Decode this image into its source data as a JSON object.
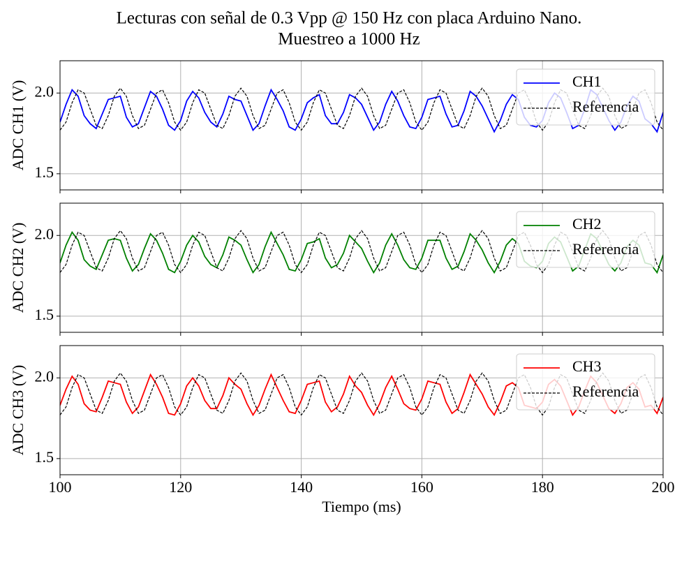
{
  "title_lines": [
    "Lecturas con señal de 0.3 Vpp @ 150 Hz con placa Arduino Nano.",
    "Muestreo a 1000 Hz"
  ],
  "chart_data": [
    {
      "type": "line",
      "ylabel": "ADC CH1 (V)",
      "xlim": [
        100,
        200
      ],
      "ylim": [
        1.4,
        2.2
      ],
      "xticks": [
        100,
        120,
        140,
        160,
        180,
        200
      ],
      "yticks": [
        1.5,
        {
          "value": 2,
          "label": "2.0"
        }
      ],
      "grid": true,
      "legend": "upper right",
      "x": [
        100,
        101,
        102,
        103,
        104,
        105,
        106,
        107,
        108,
        109,
        110,
        111,
        112,
        113,
        114,
        115,
        116,
        117,
        118,
        119,
        120,
        121,
        122,
        123,
        124,
        125,
        126,
        127,
        128,
        129,
        130,
        131,
        132,
        133,
        134,
        135,
        136,
        137,
        138,
        139,
        140,
        141,
        142,
        143,
        144,
        145,
        146,
        147,
        148,
        149,
        150,
        151,
        152,
        153,
        154,
        155,
        156,
        157,
        158,
        159,
        160,
        161,
        162,
        163,
        164,
        165,
        166,
        167,
        168,
        169,
        170,
        171,
        172,
        173,
        174,
        175,
        176,
        177,
        178,
        179,
        180,
        181,
        182,
        183,
        184,
        185,
        186,
        187,
        188,
        189,
        190,
        191,
        192,
        193,
        194,
        195,
        196,
        197,
        198,
        199,
        200
      ],
      "series": [
        {
          "name": "CH1",
          "color": "#0000ff",
          "style": "solid",
          "values": [
            1.82,
            1.93,
            2.02,
            1.98,
            1.86,
            1.81,
            1.78,
            1.87,
            1.96,
            1.97,
            1.98,
            1.85,
            1.79,
            1.81,
            1.91,
            2.01,
            1.98,
            1.9,
            1.8,
            1.77,
            1.83,
            1.95,
            2.01,
            1.97,
            1.88,
            1.82,
            1.79,
            1.87,
            1.98,
            1.96,
            1.95,
            1.86,
            1.77,
            1.81,
            1.92,
            2.02,
            1.96,
            1.89,
            1.79,
            1.77,
            1.84,
            1.94,
            1.97,
            1.99,
            1.86,
            1.81,
            1.81,
            1.88,
            1.99,
            1.97,
            1.93,
            1.85,
            1.77,
            1.82,
            1.93,
            2.01,
            1.95,
            1.86,
            1.79,
            1.78,
            1.85,
            1.96,
            1.97,
            1.98,
            1.87,
            1.79,
            1.8,
            1.89,
            2.01,
            1.98,
            1.92,
            1.84,
            1.76,
            1.83,
            1.93,
            1.99,
            1.96,
            1.85,
            1.8,
            1.79,
            1.83,
            1.94,
            2.0,
            1.97,
            1.88,
            1.78,
            1.8,
            1.9,
            2.02,
            1.99,
            1.91,
            1.83,
            1.77,
            1.82,
            1.92,
            1.98,
            1.95,
            1.84,
            1.81,
            1.76,
            1.88
          ]
        },
        {
          "name": "Referencia",
          "color": "#000000",
          "style": "dashed",
          "values": [
            1.77,
            1.82,
            1.94,
            2.02,
            2.0,
            1.9,
            1.8,
            1.78,
            1.86,
            1.98,
            2.03,
            1.98,
            1.86,
            1.78,
            1.8,
            1.9,
            2.0,
            2.02,
            1.94,
            1.82,
            1.77,
            1.82,
            1.94,
            2.02,
            2.0,
            1.9,
            1.8,
            1.78,
            1.86,
            1.98,
            2.03,
            1.98,
            1.86,
            1.78,
            1.8,
            1.9,
            2.0,
            2.02,
            1.94,
            1.82,
            1.77,
            1.82,
            1.94,
            2.02,
            2.0,
            1.9,
            1.8,
            1.78,
            1.86,
            1.98,
            2.03,
            1.98,
            1.86,
            1.78,
            1.8,
            1.9,
            2.0,
            2.02,
            1.94,
            1.82,
            1.77,
            1.82,
            1.94,
            2.02,
            2.0,
            1.9,
            1.8,
            1.78,
            1.86,
            1.98,
            2.03,
            1.98,
            1.86,
            1.78,
            1.8,
            1.9,
            2.0,
            2.02,
            1.94,
            1.82,
            1.77,
            1.82,
            1.94,
            2.02,
            2.0,
            1.9,
            1.8,
            1.78,
            1.86,
            1.98,
            2.03,
            1.98,
            1.86,
            1.78,
            1.8,
            1.9,
            2.0,
            2.02,
            1.94,
            1.82,
            1.77
          ]
        }
      ]
    },
    {
      "type": "line",
      "ylabel": "ADC CH2 (V)",
      "xlim": [
        100,
        200
      ],
      "ylim": [
        1.4,
        2.2
      ],
      "xticks": [
        100,
        120,
        140,
        160,
        180,
        200
      ],
      "yticks": [
        1.5,
        {
          "value": 2,
          "label": "2.0"
        }
      ],
      "grid": true,
      "legend": "upper right",
      "x": [
        100,
        101,
        102,
        103,
        104,
        105,
        106,
        107,
        108,
        109,
        110,
        111,
        112,
        113,
        114,
        115,
        116,
        117,
        118,
        119,
        120,
        121,
        122,
        123,
        124,
        125,
        126,
        127,
        128,
        129,
        130,
        131,
        132,
        133,
        134,
        135,
        136,
        137,
        138,
        139,
        140,
        141,
        142,
        143,
        144,
        145,
        146,
        147,
        148,
        149,
        150,
        151,
        152,
        153,
        154,
        155,
        156,
        157,
        158,
        159,
        160,
        161,
        162,
        163,
        164,
        165,
        166,
        167,
        168,
        169,
        170,
        171,
        172,
        173,
        174,
        175,
        176,
        177,
        178,
        179,
        180,
        181,
        182,
        183,
        184,
        185,
        186,
        187,
        188,
        189,
        190,
        191,
        192,
        193,
        194,
        195,
        196,
        197,
        198,
        199,
        200
      ],
      "series": [
        {
          "name": "CH2",
          "color": "#008000",
          "style": "solid",
          "values": [
            1.83,
            1.94,
            2.02,
            1.97,
            1.85,
            1.81,
            1.79,
            1.88,
            1.97,
            1.98,
            1.97,
            1.86,
            1.78,
            1.82,
            1.92,
            2.01,
            1.97,
            1.89,
            1.79,
            1.77,
            1.84,
            1.94,
            2.0,
            1.96,
            1.87,
            1.82,
            1.8,
            1.88,
            1.99,
            1.97,
            1.94,
            1.85,
            1.77,
            1.82,
            1.93,
            2.02,
            1.95,
            1.88,
            1.79,
            1.78,
            1.85,
            1.95,
            1.96,
            1.98,
            1.86,
            1.8,
            1.82,
            1.89,
            2.0,
            1.96,
            1.92,
            1.84,
            1.77,
            1.83,
            1.94,
            2.01,
            1.94,
            1.85,
            1.8,
            1.79,
            1.86,
            1.97,
            1.97,
            1.97,
            1.86,
            1.79,
            1.81,
            1.9,
            2.01,
            1.97,
            1.91,
            1.83,
            1.77,
            1.84,
            1.94,
            1.98,
            1.95,
            1.84,
            1.81,
            1.8,
            1.84,
            1.95,
            1.99,
            1.96,
            1.87,
            1.78,
            1.81,
            1.91,
            2.01,
            1.98,
            1.9,
            1.82,
            1.78,
            1.83,
            1.93,
            1.97,
            1.94,
            1.83,
            1.82,
            1.77,
            1.88
          ]
        },
        {
          "name": "Referencia",
          "color": "#000000",
          "style": "dashed",
          "values": [
            1.77,
            1.82,
            1.94,
            2.02,
            2.0,
            1.9,
            1.8,
            1.78,
            1.86,
            1.98,
            2.03,
            1.98,
            1.86,
            1.78,
            1.8,
            1.9,
            2.0,
            2.02,
            1.94,
            1.82,
            1.77,
            1.82,
            1.94,
            2.02,
            2.0,
            1.9,
            1.8,
            1.78,
            1.86,
            1.98,
            2.03,
            1.98,
            1.86,
            1.78,
            1.8,
            1.9,
            2.0,
            2.02,
            1.94,
            1.82,
            1.77,
            1.82,
            1.94,
            2.02,
            2.0,
            1.9,
            1.8,
            1.78,
            1.86,
            1.98,
            2.03,
            1.98,
            1.86,
            1.78,
            1.8,
            1.9,
            2.0,
            2.02,
            1.94,
            1.82,
            1.77,
            1.82,
            1.94,
            2.02,
            2.0,
            1.9,
            1.8,
            1.78,
            1.86,
            1.98,
            2.03,
            1.98,
            1.86,
            1.78,
            1.8,
            1.9,
            2.0,
            2.02,
            1.94,
            1.82,
            1.77,
            1.82,
            1.94,
            2.02,
            2.0,
            1.9,
            1.8,
            1.78,
            1.86,
            1.98,
            2.03,
            1.98,
            1.86,
            1.78,
            1.8,
            1.9,
            2.0,
            2.02,
            1.94,
            1.82,
            1.77
          ]
        }
      ]
    },
    {
      "type": "line",
      "ylabel": "ADC CH3 (V)",
      "xlabel": "Tiempo (ms)",
      "xlim": [
        100,
        200
      ],
      "ylim": [
        1.4,
        2.2
      ],
      "xticks": [
        100,
        120,
        140,
        160,
        180,
        200
      ],
      "yticks": [
        1.5,
        {
          "value": 2,
          "label": "2.0"
        }
      ],
      "grid": true,
      "legend": "upper right",
      "x": [
        100,
        101,
        102,
        103,
        104,
        105,
        106,
        107,
        108,
        109,
        110,
        111,
        112,
        113,
        114,
        115,
        116,
        117,
        118,
        119,
        120,
        121,
        122,
        123,
        124,
        125,
        126,
        127,
        128,
        129,
        130,
        131,
        132,
        133,
        134,
        135,
        136,
        137,
        138,
        139,
        140,
        141,
        142,
        143,
        144,
        145,
        146,
        147,
        148,
        149,
        150,
        151,
        152,
        153,
        154,
        155,
        156,
        157,
        158,
        159,
        160,
        161,
        162,
        163,
        164,
        165,
        166,
        167,
        168,
        169,
        170,
        171,
        172,
        173,
        174,
        175,
        176,
        177,
        178,
        179,
        180,
        181,
        182,
        183,
        184,
        185,
        186,
        187,
        188,
        189,
        190,
        191,
        192,
        193,
        194,
        195,
        196,
        197,
        198,
        199,
        200
      ],
      "series": [
        {
          "name": "CH3",
          "color": "#ff0000",
          "style": "solid",
          "values": [
            1.83,
            1.93,
            2.01,
            1.96,
            1.84,
            1.8,
            1.79,
            1.88,
            1.98,
            1.97,
            1.96,
            1.85,
            1.78,
            1.82,
            1.92,
            2.02,
            1.96,
            1.88,
            1.78,
            1.77,
            1.84,
            1.95,
            2.0,
            1.95,
            1.86,
            1.81,
            1.81,
            1.89,
            2.0,
            1.96,
            1.93,
            1.84,
            1.77,
            1.83,
            1.93,
            2.02,
            1.94,
            1.86,
            1.79,
            1.78,
            1.86,
            1.96,
            1.97,
            1.98,
            1.85,
            1.79,
            1.82,
            1.9,
            2.01,
            1.95,
            1.91,
            1.83,
            1.77,
            1.84,
            1.94,
            2.01,
            1.93,
            1.84,
            1.81,
            1.8,
            1.87,
            1.98,
            1.97,
            1.96,
            1.85,
            1.78,
            1.81,
            1.91,
            2.02,
            1.96,
            1.9,
            1.82,
            1.77,
            1.85,
            1.95,
            1.97,
            1.94,
            1.83,
            1.82,
            1.81,
            1.85,
            1.96,
            1.99,
            1.95,
            1.86,
            1.77,
            1.82,
            1.92,
            2.01,
            1.97,
            1.89,
            1.81,
            1.78,
            1.84,
            1.94,
            1.97,
            1.93,
            1.82,
            1.83,
            1.78,
            1.88
          ]
        },
        {
          "name": "Referencia",
          "color": "#000000",
          "style": "dashed",
          "values": [
            1.77,
            1.82,
            1.94,
            2.02,
            2.0,
            1.9,
            1.8,
            1.78,
            1.86,
            1.98,
            2.03,
            1.98,
            1.86,
            1.78,
            1.8,
            1.9,
            2.0,
            2.02,
            1.94,
            1.82,
            1.77,
            1.82,
            1.94,
            2.02,
            2.0,
            1.9,
            1.8,
            1.78,
            1.86,
            1.98,
            2.03,
            1.98,
            1.86,
            1.78,
            1.8,
            1.9,
            2.0,
            2.02,
            1.94,
            1.82,
            1.77,
            1.82,
            1.94,
            2.02,
            2.0,
            1.9,
            1.8,
            1.78,
            1.86,
            1.98,
            2.03,
            1.98,
            1.86,
            1.78,
            1.8,
            1.9,
            2.0,
            2.02,
            1.94,
            1.82,
            1.77,
            1.82,
            1.94,
            2.02,
            2.0,
            1.9,
            1.8,
            1.78,
            1.86,
            1.98,
            2.03,
            1.98,
            1.86,
            1.78,
            1.8,
            1.9,
            2.0,
            2.02,
            1.94,
            1.82,
            1.77,
            1.82,
            1.94,
            2.02,
            2.0,
            1.9,
            1.8,
            1.78,
            1.86,
            1.98,
            2.03,
            1.98,
            1.86,
            1.78,
            1.8,
            1.9,
            2.0,
            2.02,
            1.94,
            1.82,
            1.77
          ]
        }
      ]
    }
  ]
}
